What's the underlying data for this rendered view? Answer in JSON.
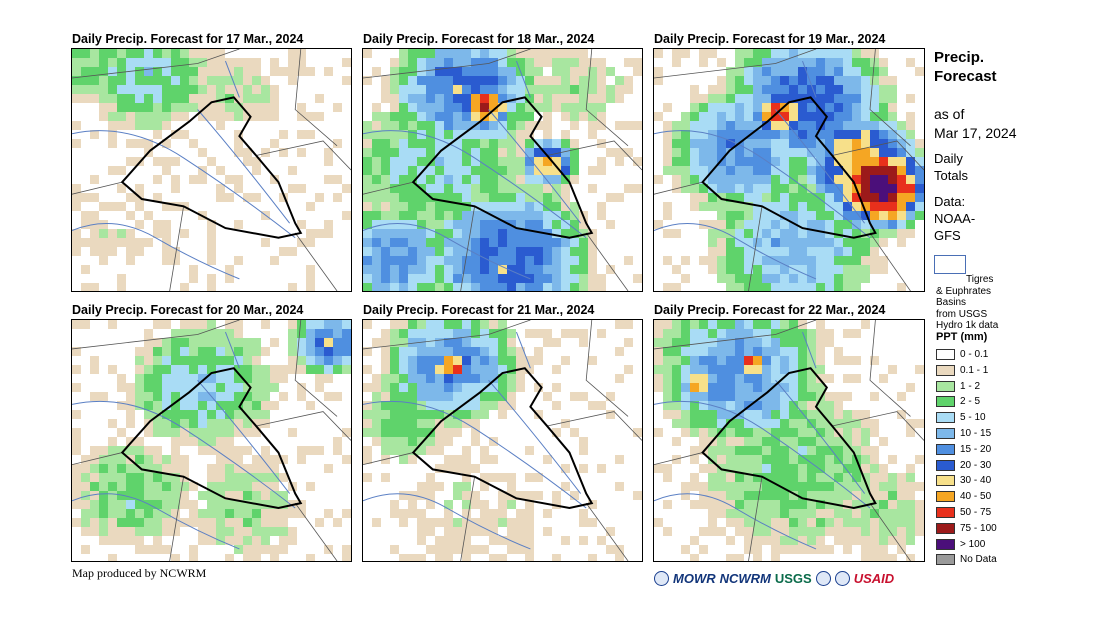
{
  "panels": [
    {
      "title": "Daily Precip. Forecast for 17 Mar., 2024"
    },
    {
      "title": "Daily Precip. Forecast for 18 Mar., 2024"
    },
    {
      "title": "Daily Precip. Forecast for 19 Mar., 2024"
    },
    {
      "title": "Daily Precip. Forecast for 20 Mar., 2024"
    },
    {
      "title": "Daily Precip. Forecast for 21 Mar., 2024"
    },
    {
      "title": "Daily Precip. Forecast for 22 Mar., 2024"
    }
  ],
  "side": {
    "heading1": "Precip.",
    "heading2": "Forecast",
    "asof1": "as of",
    "asof2": "Mar 17, 2024",
    "daily1": "Daily",
    "daily2": "Totals",
    "data1": "Data:",
    "data2": "NOAA-",
    "data3": "GFS"
  },
  "basins": {
    "line1": "Tigres",
    "line2": "& Euphrates",
    "line3": "Basins",
    "line4": "from USGS",
    "line5": "Hydro 1k data"
  },
  "legend": {
    "title": "PPT (mm)",
    "items": [
      {
        "label": "0 - 0.1",
        "color": "#ffffff"
      },
      {
        "label": "0.1 - 1",
        "color": "#ead9bf"
      },
      {
        "label": "1 - 2",
        "color": "#a8e6a0"
      },
      {
        "label": "2 - 5",
        "color": "#5fd36b"
      },
      {
        "label": "5 - 10",
        "color": "#a9dcf5"
      },
      {
        "label": "10 - 15",
        "color": "#7db8ea"
      },
      {
        "label": "15 - 20",
        "color": "#4f8fe0"
      },
      {
        "label": "20 - 30",
        "color": "#2a5bd0"
      },
      {
        "label": "30 - 40",
        "color": "#f7e08a"
      },
      {
        "label": "40 - 50",
        "color": "#f5a623"
      },
      {
        "label": "50 - 75",
        "color": "#e8301c"
      },
      {
        "label": "75 - 100",
        "color": "#9c1a1a"
      },
      {
        "label": "> 100",
        "color": "#4b0f7a"
      },
      {
        "label": "No Data",
        "color": "#9a9a9a"
      }
    ]
  },
  "credit": "Map produced by NCWRM",
  "logos": {
    "mowr": "MOWR",
    "ncwrm": "NCWRM",
    "usgs": "USGS",
    "usaid": "USAID"
  }
}
